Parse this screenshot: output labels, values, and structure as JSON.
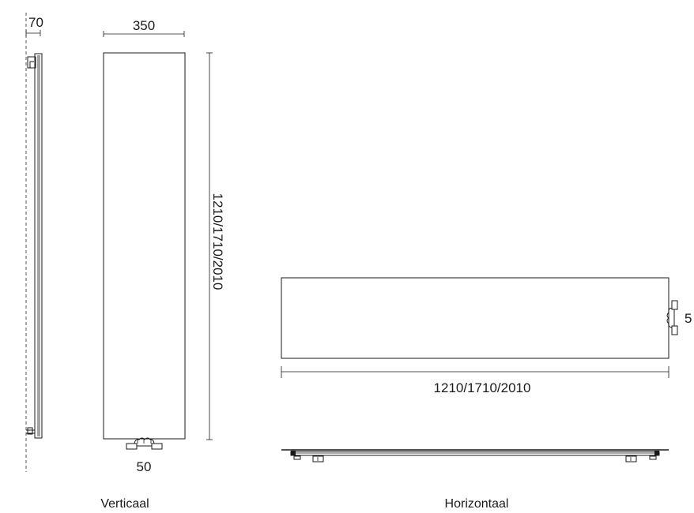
{
  "dimensions": {
    "side_depth": "70",
    "front_width": "350",
    "front_height": "1210/1710/2010",
    "connection_spacing": "50",
    "horizontal_length": "1210/1710/2010",
    "horizontal_connection": "5"
  },
  "captions": {
    "vertical": "Verticaal",
    "horizontal": "Horizontaal"
  },
  "colors": {
    "line": "#1a1a1a",
    "wall_dash": "#555555",
    "background": "#ffffff"
  }
}
